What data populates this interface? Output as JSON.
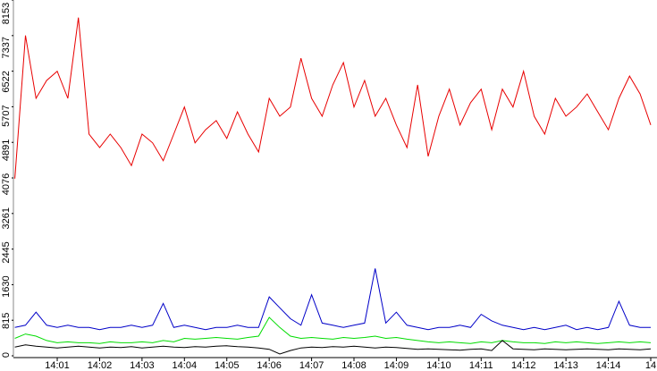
{
  "chart_data": {
    "type": "line",
    "categories": [
      null,
      null,
      null,
      null,
      "14:01",
      null,
      null,
      null,
      "14:02",
      null,
      null,
      null,
      "14:03",
      null,
      null,
      null,
      "14:04",
      null,
      null,
      null,
      "14:05",
      null,
      null,
      null,
      "14:06",
      null,
      null,
      null,
      "14:07",
      null,
      null,
      null,
      "14:08",
      null,
      null,
      null,
      "14:09",
      null,
      null,
      null,
      "14:10",
      null,
      null,
      null,
      "14:11",
      null,
      null,
      null,
      "14:12",
      null,
      null,
      null,
      "14:13",
      null,
      null,
      null,
      "14:14",
      null,
      null,
      null,
      "14"
    ],
    "series": [
      {
        "name": "red",
        "color": "#e80000",
        "values": [
          4060,
          7340,
          5900,
          6310,
          6520,
          5900,
          7750,
          5080,
          4770,
          5080,
          4770,
          4360,
          5080,
          4880,
          4470,
          5080,
          5700,
          4880,
          5180,
          5390,
          4980,
          5590,
          5080,
          4670,
          5900,
          5490,
          5700,
          6820,
          5900,
          5490,
          6210,
          6720,
          5700,
          6310,
          5490,
          5900,
          5290,
          4770,
          6210,
          4570,
          5490,
          6110,
          5290,
          5800,
          6110,
          5180,
          6110,
          5700,
          6520,
          5490,
          5080,
          5900,
          5490,
          5700,
          6000,
          5590,
          5180,
          5900,
          6410,
          6000,
          5290
        ]
      },
      {
        "name": "blue",
        "color": "#0000c8",
        "values": [
          650,
          700,
          1000,
          700,
          650,
          700,
          650,
          650,
          600,
          650,
          650,
          700,
          650,
          700,
          1200,
          650,
          700,
          650,
          600,
          650,
          650,
          700,
          650,
          650,
          1350,
          1100,
          850,
          700,
          1400,
          750,
          700,
          650,
          700,
          750,
          2000,
          750,
          1000,
          700,
          650,
          600,
          650,
          650,
          700,
          650,
          950,
          800,
          700,
          650,
          600,
          650,
          600,
          650,
          700,
          600,
          650,
          600,
          650,
          1250,
          700,
          650,
          650
        ]
      },
      {
        "name": "green",
        "color": "#00dc00",
        "values": [
          400,
          500,
          450,
          350,
          300,
          320,
          300,
          300,
          280,
          320,
          300,
          300,
          320,
          300,
          350,
          320,
          400,
          380,
          400,
          420,
          400,
          380,
          420,
          450,
          880,
          650,
          450,
          400,
          420,
          400,
          380,
          420,
          400,
          420,
          450,
          400,
          420,
          380,
          350,
          320,
          300,
          320,
          300,
          280,
          320,
          300,
          350,
          320,
          300,
          300,
          280,
          320,
          300,
          320,
          300,
          280,
          300,
          320,
          300,
          320,
          300
        ]
      },
      {
        "name": "black",
        "color": "#000000",
        "values": [
          200,
          250,
          220,
          200,
          180,
          200,
          220,
          200,
          180,
          200,
          190,
          210,
          180,
          200,
          220,
          200,
          190,
          210,
          200,
          220,
          230,
          210,
          200,
          180,
          150,
          40,
          120,
          180,
          200,
          190,
          210,
          200,
          220,
          200,
          180,
          200,
          190,
          170,
          150,
          160,
          150,
          140,
          130,
          150,
          160,
          120,
          350,
          160,
          150,
          140,
          160,
          150,
          140,
          150,
          160,
          150,
          140,
          160,
          150,
          140,
          160
        ]
      }
    ],
    "ylim": [
      0,
      8153
    ],
    "yticks": [
      0,
      815,
      1630,
      2445,
      3261,
      4076,
      4891,
      5707,
      6522,
      7337,
      8153
    ]
  }
}
